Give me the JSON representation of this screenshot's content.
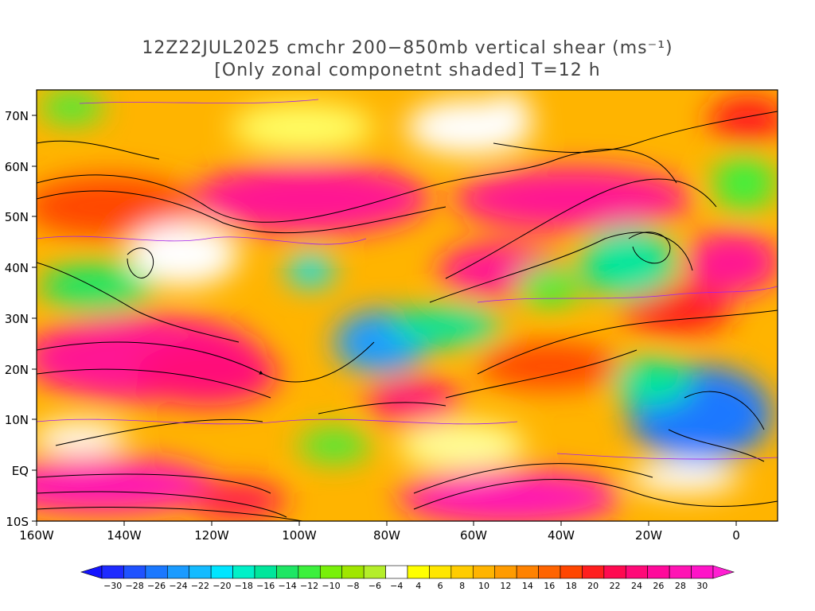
{
  "title": {
    "line1": "12Z22JUL2025 cmchr 200−850mb vertical shear (ms⁻¹)",
    "line2": "[Only zonal componetnt shaded] T=12 h"
  },
  "map": {
    "lat_labels": [
      "70N",
      "60N",
      "50N",
      "40N",
      "30N",
      "20N",
      "10N",
      "EQ",
      "10S"
    ],
    "lon_labels": [
      "160W",
      "140W",
      "120W",
      "100W",
      "80W",
      "60W",
      "40W",
      "20W",
      "0"
    ],
    "lat_range": [
      -10,
      75
    ],
    "lon_range": [
      -160,
      10
    ]
  },
  "colorbar": {
    "labels": [
      "-30",
      "-28",
      "-26",
      "-24",
      "-22",
      "-20",
      "-18",
      "-16",
      "-14",
      "-12",
      "-10",
      "-8",
      "-6",
      "-4",
      "4",
      "6",
      "8",
      "10",
      "12",
      "14",
      "16",
      "18",
      "20",
      "22",
      "24",
      "26",
      "28",
      "30"
    ],
    "colors": [
      "#1e2bff",
      "#1f52ff",
      "#1a78ff",
      "#1a9bff",
      "#14bbff",
      "#00e5ff",
      "#00f0c8",
      "#00e69b",
      "#1ee664",
      "#3cf03c",
      "#78f00a",
      "#a0e600",
      "#b4ee2a",
      "#ffffff",
      "#ffff00",
      "#ffe600",
      "#ffcc00",
      "#ffb400",
      "#ff9b00",
      "#ff8200",
      "#ff6400",
      "#ff4600",
      "#ff1e1e",
      "#ff0a50",
      "#ff0a78",
      "#ff0a9b",
      "#ff14b4",
      "#ff14c8"
    ],
    "under_color": "#1414ff",
    "over_color": "#ff1ed2"
  }
}
